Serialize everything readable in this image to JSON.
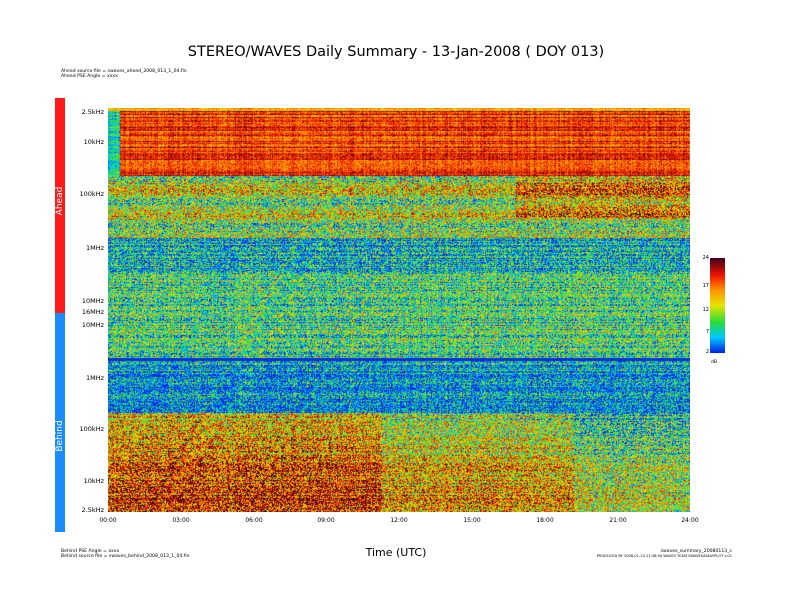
{
  "title": "STEREO/WAVES Daily Summary - 13-Jan-2008 ( DOY 013)",
  "header_lines": [
    "Ahead source file = swaves_ahead_2008_013_1_04.fin",
    "Ahead PSE Angle = xxxx"
  ],
  "footer_left": [
    "Behind PSE Angle = xxxx",
    "Behind source file = swaves_behind_2008_013_1_04.fin"
  ],
  "footer_right": [
    "swaves_summary_20080113_c",
    "PRODUCED BY 2008-01-13 11:38:00 WAVES TEAM SWAVES/DAILYPLOT v.01"
  ],
  "bands": {
    "ahead": "Ahead",
    "behind": "Behind"
  },
  "colors": {
    "ahead": "#ff1a1a",
    "behind": "#1a8cff"
  },
  "chart_data": {
    "type": "heatmap",
    "title": "STEREO/WAVES Daily Summary - 13-Jan-2008 ( DOY 013)",
    "xlabel": "Time (UTC)",
    "xticks": [
      "00:00",
      "03:00",
      "06:00",
      "09:00",
      "12:00",
      "15:00",
      "18:00",
      "21:00",
      "24:00"
    ],
    "x_range_hours": [
      0,
      24
    ],
    "panels": [
      {
        "name": "Ahead",
        "yticks": [
          "2.5kHz",
          "10kHz",
          "100kHz",
          "1MHz",
          "10MHz",
          "16MHz"
        ],
        "ylim_hz": [
          2500,
          16000000
        ],
        "scale": "log, frequency decreasing upward"
      },
      {
        "name": "Behind",
        "yticks": [
          "10MHz",
          "1MHz",
          "100kHz",
          "10kHz",
          "2.5kHz"
        ],
        "ylim_hz": [
          2500,
          16000000
        ],
        "scale": "log, frequency decreasing downward"
      }
    ],
    "colorbar": {
      "ticks": [
        "24",
        "17",
        "12",
        "7",
        "2"
      ],
      "unit": "dB",
      "range": [
        2,
        24
      ]
    }
  }
}
